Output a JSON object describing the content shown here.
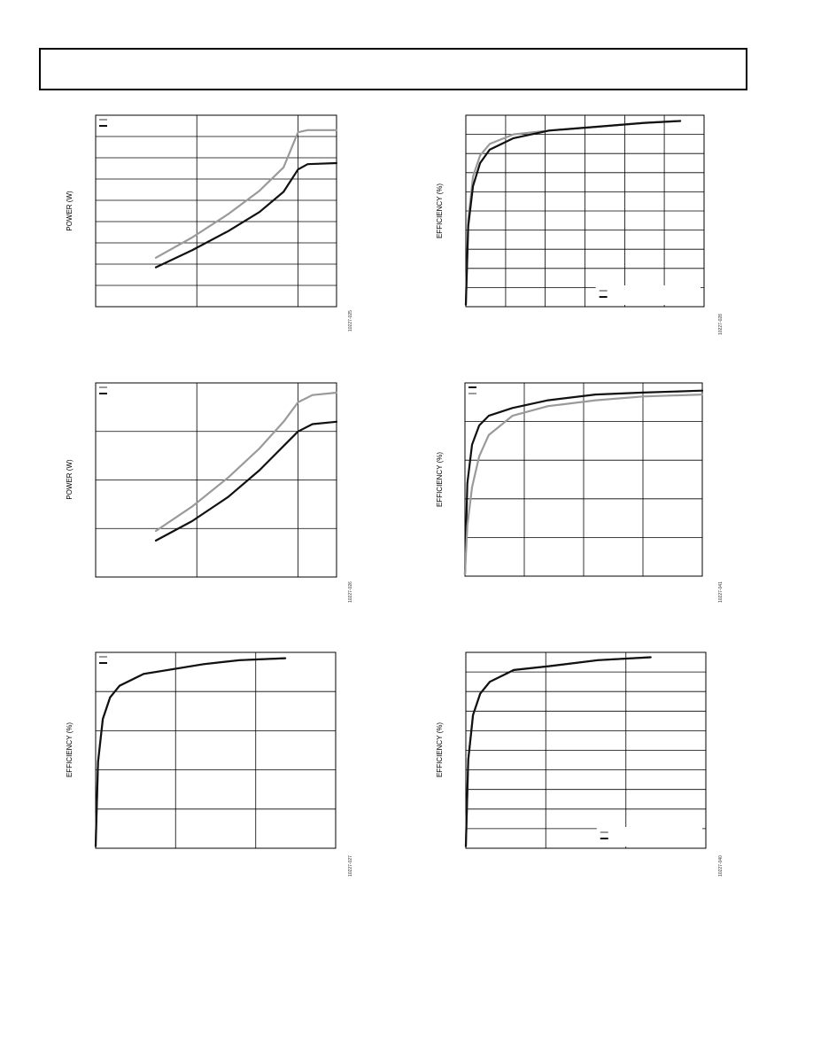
{
  "page": {
    "header_text": ""
  },
  "colors": {
    "light_series": "#9a9a9a",
    "dark_series": "#111111",
    "grid": "#000000"
  },
  "chart_data": [
    {
      "id": "chart-1",
      "type": "line",
      "ylabel": "POWER (W)",
      "fig_id": "10227-025",
      "xlim": [
        0,
        1
      ],
      "ylim": [
        0,
        9
      ],
      "xgrid": [
        0.42,
        0.84
      ],
      "ygrid": [
        1,
        2,
        3,
        4,
        5,
        6,
        7,
        8
      ],
      "legend": "top-left",
      "series": [
        {
          "color": "light",
          "points": [
            [
              0.25,
              2.3
            ],
            [
              0.4,
              3.25
            ],
            [
              0.55,
              4.35
            ],
            [
              0.68,
              5.45
            ],
            [
              0.78,
              6.55
            ],
            [
              0.84,
              8.2
            ],
            [
              0.88,
              8.3
            ],
            [
              1.0,
              8.3
            ]
          ]
        },
        {
          "color": "dark",
          "points": [
            [
              0.25,
              1.85
            ],
            [
              0.4,
              2.65
            ],
            [
              0.55,
              3.55
            ],
            [
              0.68,
              4.45
            ],
            [
              0.78,
              5.4
            ],
            [
              0.84,
              6.45
            ],
            [
              0.88,
              6.7
            ],
            [
              1.0,
              6.75
            ]
          ]
        }
      ]
    },
    {
      "id": "chart-2",
      "type": "line",
      "ylabel": "EFFICIENCY (%)",
      "fig_id": "10227-028",
      "xlim": [
        0,
        1
      ],
      "ylim": [
        0,
        10
      ],
      "xgrid": [
        0.167,
        0.333,
        0.5,
        0.667,
        0.833
      ],
      "ygrid": [
        1,
        2,
        3,
        4,
        5,
        6,
        7,
        8,
        9
      ],
      "legend": "bottom-right",
      "series": [
        {
          "color": "light",
          "points": [
            [
              0.0,
              0.1
            ],
            [
              0.01,
              4.5
            ],
            [
              0.03,
              6.8
            ],
            [
              0.06,
              7.9
            ],
            [
              0.1,
              8.5
            ],
            [
              0.2,
              9.0
            ],
            [
              0.35,
              9.2
            ],
            [
              0.55,
              9.4
            ],
            [
              0.75,
              9.6
            ],
            [
              0.9,
              9.7
            ]
          ]
        },
        {
          "color": "dark",
          "points": [
            [
              0.0,
              0.1
            ],
            [
              0.01,
              4.2
            ],
            [
              0.03,
              6.3
            ],
            [
              0.06,
              7.5
            ],
            [
              0.1,
              8.2
            ],
            [
              0.2,
              8.8
            ],
            [
              0.35,
              9.2
            ],
            [
              0.55,
              9.4
            ],
            [
              0.75,
              9.6
            ],
            [
              0.9,
              9.7
            ]
          ]
        }
      ]
    },
    {
      "id": "chart-3",
      "type": "line",
      "ylabel": "POWER (W)",
      "fig_id": "10227-026",
      "xlim": [
        0,
        1
      ],
      "ylim": [
        0,
        4
      ],
      "xgrid": [
        0.42,
        0.84
      ],
      "ygrid": [
        1,
        2,
        3
      ],
      "legend": "top-left",
      "series": [
        {
          "color": "light",
          "points": [
            [
              0.25,
              0.95
            ],
            [
              0.4,
              1.45
            ],
            [
              0.55,
              2.05
            ],
            [
              0.68,
              2.65
            ],
            [
              0.78,
              3.2
            ],
            [
              0.84,
              3.6
            ],
            [
              0.9,
              3.75
            ],
            [
              1.0,
              3.8
            ]
          ]
        },
        {
          "color": "dark",
          "points": [
            [
              0.25,
              0.75
            ],
            [
              0.4,
              1.15
            ],
            [
              0.55,
              1.65
            ],
            [
              0.68,
              2.2
            ],
            [
              0.78,
              2.7
            ],
            [
              0.84,
              3.0
            ],
            [
              0.9,
              3.15
            ],
            [
              1.0,
              3.2
            ]
          ]
        }
      ]
    },
    {
      "id": "chart-4",
      "type": "line",
      "ylabel": "EFFICIENCY (%)",
      "fig_id": "10227-041",
      "xlim": [
        0,
        1
      ],
      "ylim": [
        0,
        5
      ],
      "xgrid": [
        0.25,
        0.5,
        0.75
      ],
      "ygrid": [
        1,
        2,
        3,
        4
      ],
      "legend": "top-left",
      "series": [
        {
          "color": "dark",
          "points": [
            [
              0.0,
              0.05
            ],
            [
              0.01,
              2.4
            ],
            [
              0.03,
              3.4
            ],
            [
              0.06,
              3.9
            ],
            [
              0.1,
              4.15
            ],
            [
              0.2,
              4.35
            ],
            [
              0.35,
              4.55
            ],
            [
              0.55,
              4.7
            ],
            [
              0.75,
              4.75
            ],
            [
              1.0,
              4.8
            ]
          ]
        },
        {
          "color": "light",
          "points": [
            [
              0.0,
              0.05
            ],
            [
              0.01,
              1.3
            ],
            [
              0.03,
              2.3
            ],
            [
              0.06,
              3.1
            ],
            [
              0.1,
              3.65
            ],
            [
              0.2,
              4.15
            ],
            [
              0.35,
              4.4
            ],
            [
              0.55,
              4.55
            ],
            [
              0.75,
              4.65
            ],
            [
              1.0,
              4.7
            ]
          ]
        }
      ]
    },
    {
      "id": "chart-5",
      "type": "line",
      "ylabel": "EFFICIENCY (%)",
      "fig_id": "10227-027",
      "xlim": [
        0,
        1
      ],
      "ylim": [
        0,
        5
      ],
      "xgrid": [
        0.333,
        0.667
      ],
      "ygrid": [
        1,
        2,
        3,
        4
      ],
      "legend": "top-left",
      "series": [
        {
          "color": "light",
          "points": [
            [
              0.0,
              0.05
            ],
            [
              0.01,
              2.2
            ],
            [
              0.03,
              3.3
            ],
            [
              0.06,
              3.85
            ],
            [
              0.1,
              4.15
            ],
            [
              0.2,
              4.45
            ],
            [
              0.3,
              4.55
            ],
            [
              0.45,
              4.7
            ],
            [
              0.6,
              4.8
            ],
            [
              0.79,
              4.85
            ]
          ]
        },
        {
          "color": "dark",
          "points": [
            [
              0.0,
              0.05
            ],
            [
              0.01,
              2.2
            ],
            [
              0.03,
              3.3
            ],
            [
              0.06,
              3.85
            ],
            [
              0.1,
              4.15
            ],
            [
              0.2,
              4.45
            ],
            [
              0.3,
              4.55
            ],
            [
              0.45,
              4.7
            ],
            [
              0.6,
              4.8
            ],
            [
              0.79,
              4.85
            ]
          ]
        }
      ]
    },
    {
      "id": "chart-6",
      "type": "line",
      "ylabel": "EFFICIENCY (%)",
      "fig_id": "10227-040",
      "xlim": [
        0,
        1
      ],
      "ylim": [
        0,
        10
      ],
      "xgrid": [
        0.333,
        0.667
      ],
      "ygrid": [
        1,
        2,
        3,
        4,
        5,
        6,
        7,
        8,
        9
      ],
      "legend": "bottom-right",
      "series": [
        {
          "color": "light",
          "points": [
            [
              0.0,
              0.1
            ],
            [
              0.01,
              4.5
            ],
            [
              0.03,
              6.8
            ],
            [
              0.06,
              7.9
            ],
            [
              0.1,
              8.5
            ],
            [
              0.2,
              9.1
            ],
            [
              0.35,
              9.3
            ],
            [
              0.55,
              9.6
            ],
            [
              0.77,
              9.75
            ]
          ]
        },
        {
          "color": "dark",
          "points": [
            [
              0.0,
              0.1
            ],
            [
              0.01,
              4.5
            ],
            [
              0.03,
              6.8
            ],
            [
              0.06,
              7.9
            ],
            [
              0.1,
              8.5
            ],
            [
              0.2,
              9.1
            ],
            [
              0.35,
              9.3
            ],
            [
              0.55,
              9.6
            ],
            [
              0.77,
              9.75
            ]
          ]
        }
      ]
    }
  ]
}
